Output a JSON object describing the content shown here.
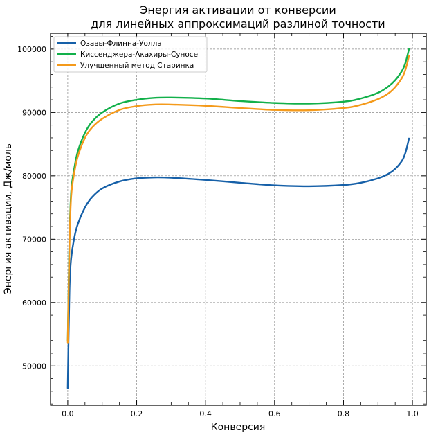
{
  "chart_data": {
    "type": "line",
    "title_lines": [
      "Энергия активации от конверсии",
      "для линейных аппроксимаций разлиной точности"
    ],
    "xlabel": "Конверсия",
    "ylabel": "Энергия активации, Дж/моль",
    "xlim": [
      -0.05,
      1.04
    ],
    "ylim": [
      43800,
      102500
    ],
    "x_ticks": [
      0.0,
      0.2,
      0.4,
      0.6,
      0.8,
      1.0
    ],
    "x_tick_labels": [
      "0.0",
      "0.2",
      "0.4",
      "0.6",
      "0.8",
      "1.0"
    ],
    "y_ticks": [
      50000,
      60000,
      70000,
      80000,
      90000,
      100000
    ],
    "y_tick_labels": [
      "50000",
      "60000",
      "70000",
      "80000",
      "90000",
      "100000"
    ],
    "grid": true,
    "legend_position": "top-left",
    "series": [
      {
        "name": "Озавы-Флинна-Уолла",
        "color": "#1660a8",
        "x": [
          0.0,
          0.005,
          0.01,
          0.02,
          0.03,
          0.05,
          0.07,
          0.1,
          0.15,
          0.2,
          0.25,
          0.3,
          0.4,
          0.5,
          0.6,
          0.7,
          0.8,
          0.85,
          0.9,
          0.93,
          0.95,
          0.97,
          0.98,
          0.99
        ],
        "y": [
          46500,
          62000,
          67000,
          70500,
          72500,
          75000,
          76600,
          78000,
          79100,
          79600,
          79750,
          79700,
          79350,
          78900,
          78500,
          78350,
          78550,
          78900,
          79600,
          80300,
          81100,
          82400,
          83700,
          85900
        ]
      },
      {
        "name": "Киссенджера-Акахиры-Суносе",
        "color": "#12b04a",
        "x": [
          0.0,
          0.005,
          0.01,
          0.02,
          0.03,
          0.05,
          0.07,
          0.1,
          0.15,
          0.2,
          0.25,
          0.3,
          0.4,
          0.5,
          0.6,
          0.7,
          0.8,
          0.85,
          0.9,
          0.93,
          0.95,
          0.97,
          0.98,
          0.99
        ],
        "y": [
          54000,
          70000,
          77500,
          81500,
          84000,
          86800,
          88500,
          90000,
          91400,
          92000,
          92300,
          92350,
          92200,
          91800,
          91500,
          91400,
          91700,
          92200,
          93100,
          94100,
          95100,
          96600,
          97900,
          100000
        ]
      },
      {
        "name": "Улучшенный метод Старинка",
        "color": "#f49a1b",
        "x": [
          0.0,
          0.005,
          0.01,
          0.02,
          0.03,
          0.05,
          0.07,
          0.1,
          0.15,
          0.2,
          0.25,
          0.3,
          0.4,
          0.5,
          0.6,
          0.7,
          0.8,
          0.85,
          0.9,
          0.93,
          0.95,
          0.97,
          0.98,
          0.99
        ],
        "y": [
          53700,
          69000,
          76800,
          80800,
          83200,
          86000,
          87600,
          89000,
          90400,
          91000,
          91250,
          91250,
          91050,
          90700,
          90400,
          90350,
          90700,
          91200,
          92100,
          93000,
          94000,
          95500,
          96800,
          98900
        ]
      }
    ]
  }
}
